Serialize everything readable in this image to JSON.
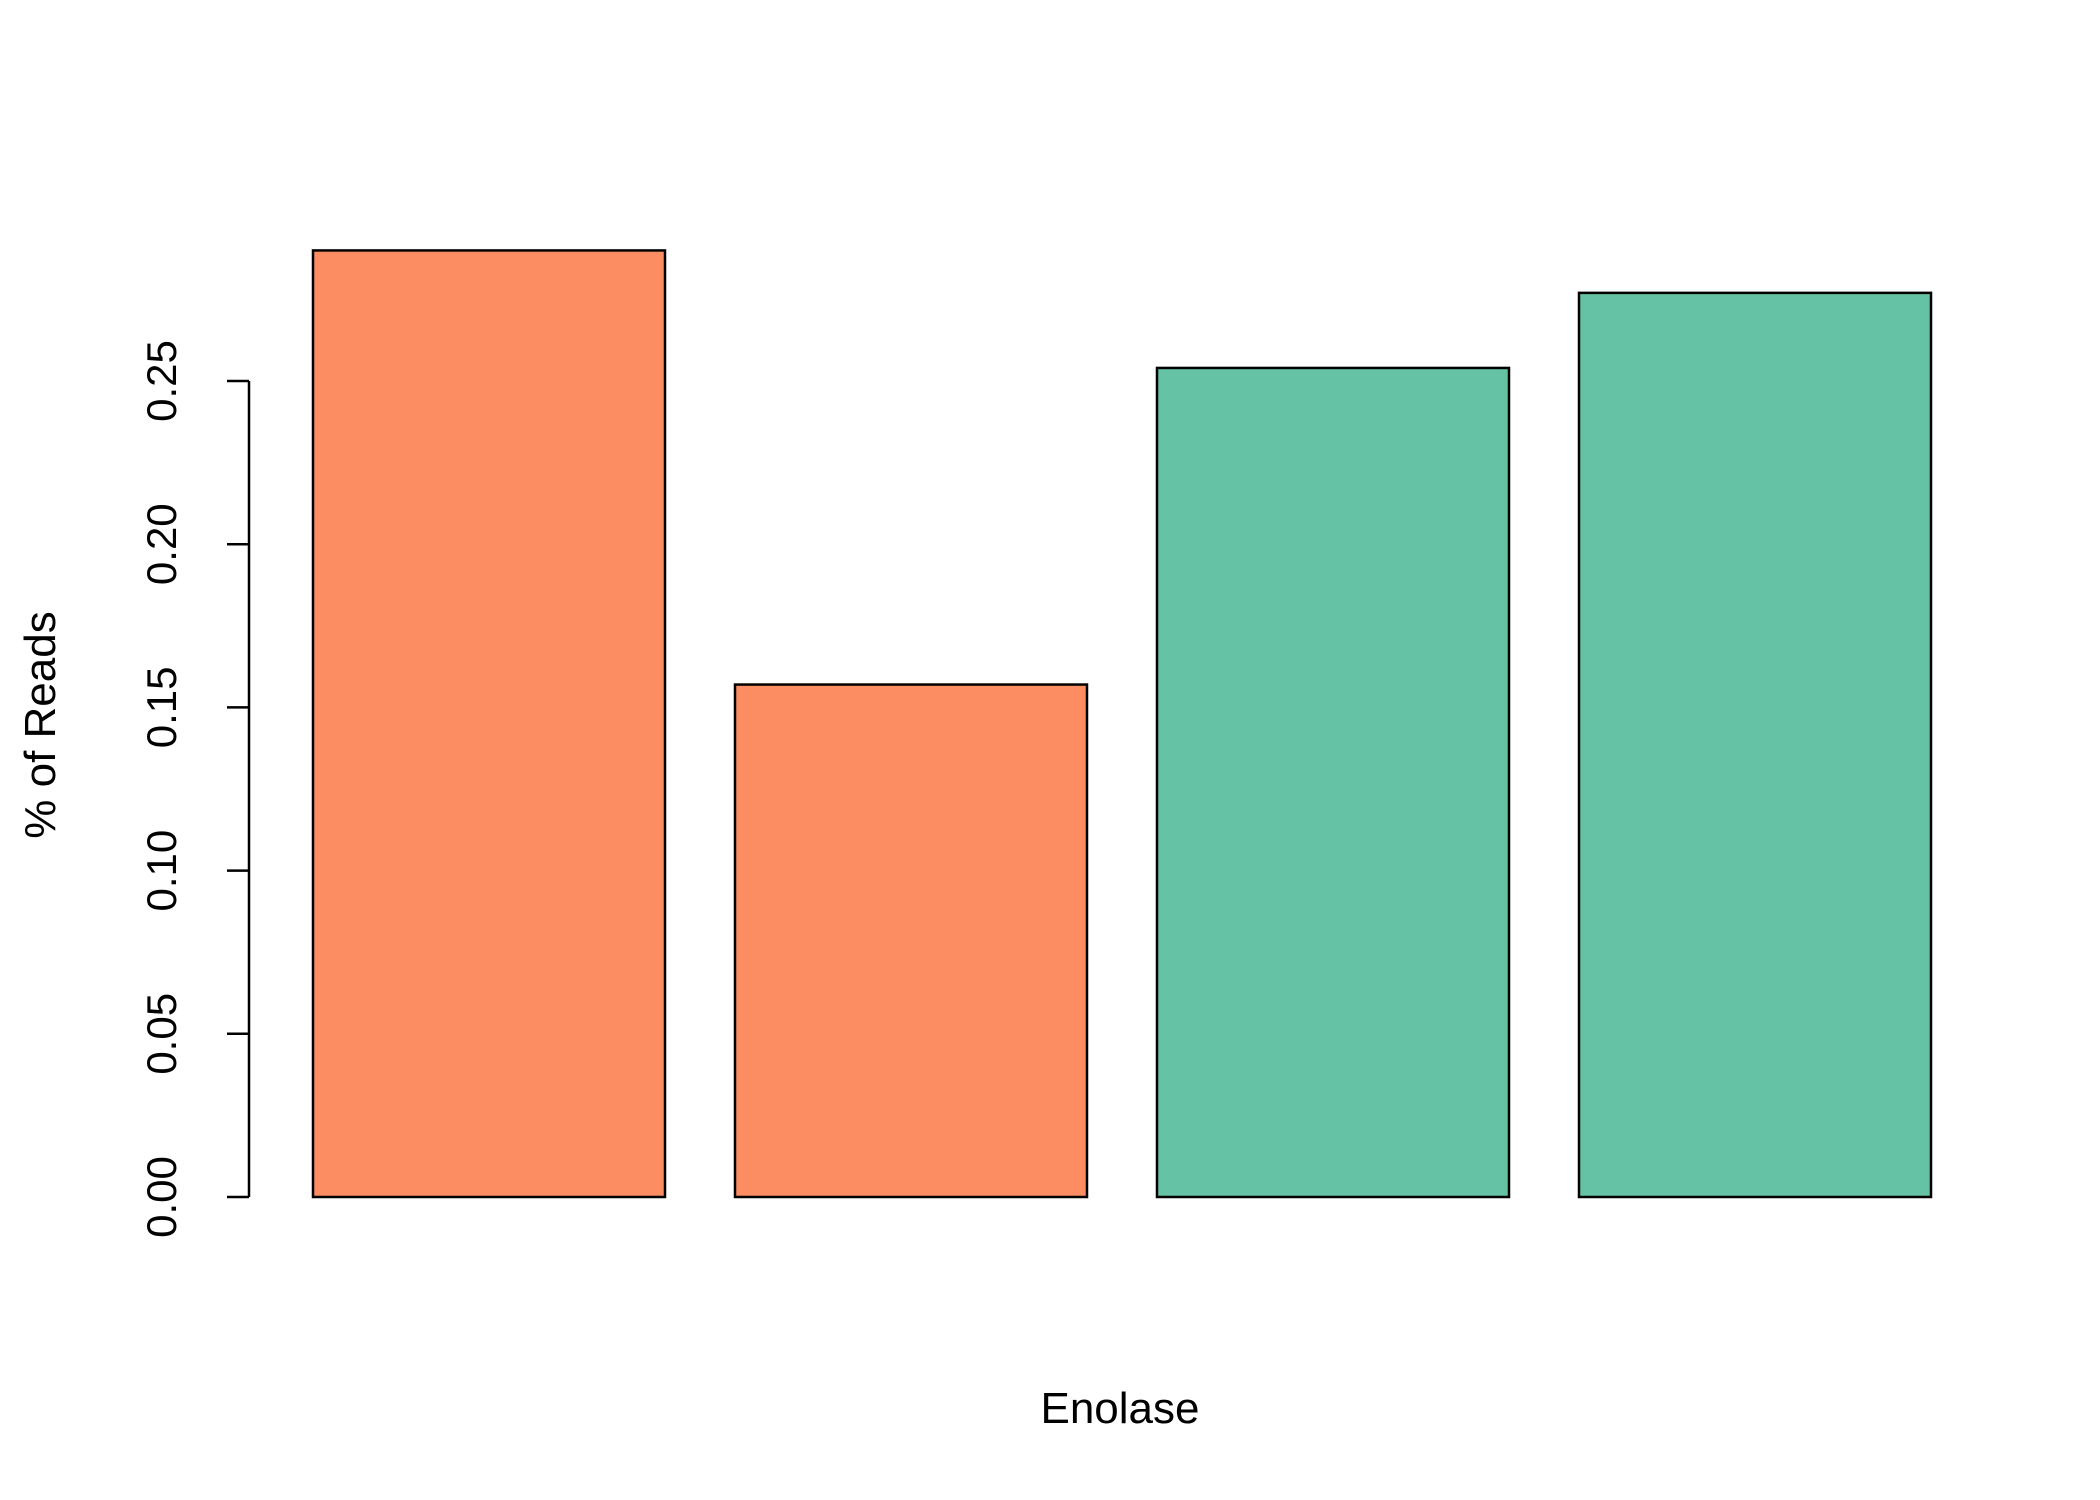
{
  "chart_data": {
    "type": "bar",
    "xlabel": "Enolase",
    "ylabel": "% of Reads",
    "ylim": [
      0,
      0.29
    ],
    "yticks": [
      "0.00",
      "0.05",
      "0.10",
      "0.15",
      "0.20",
      "0.25"
    ],
    "values": [
      0.29,
      0.157,
      0.254,
      0.277
    ],
    "bar_colors": [
      "#FC8D62",
      "#FC8D62",
      "#66C2A5",
      "#66C2A5"
    ],
    "bar_outline_color": "#000000",
    "grid": false,
    "legend": "none"
  }
}
